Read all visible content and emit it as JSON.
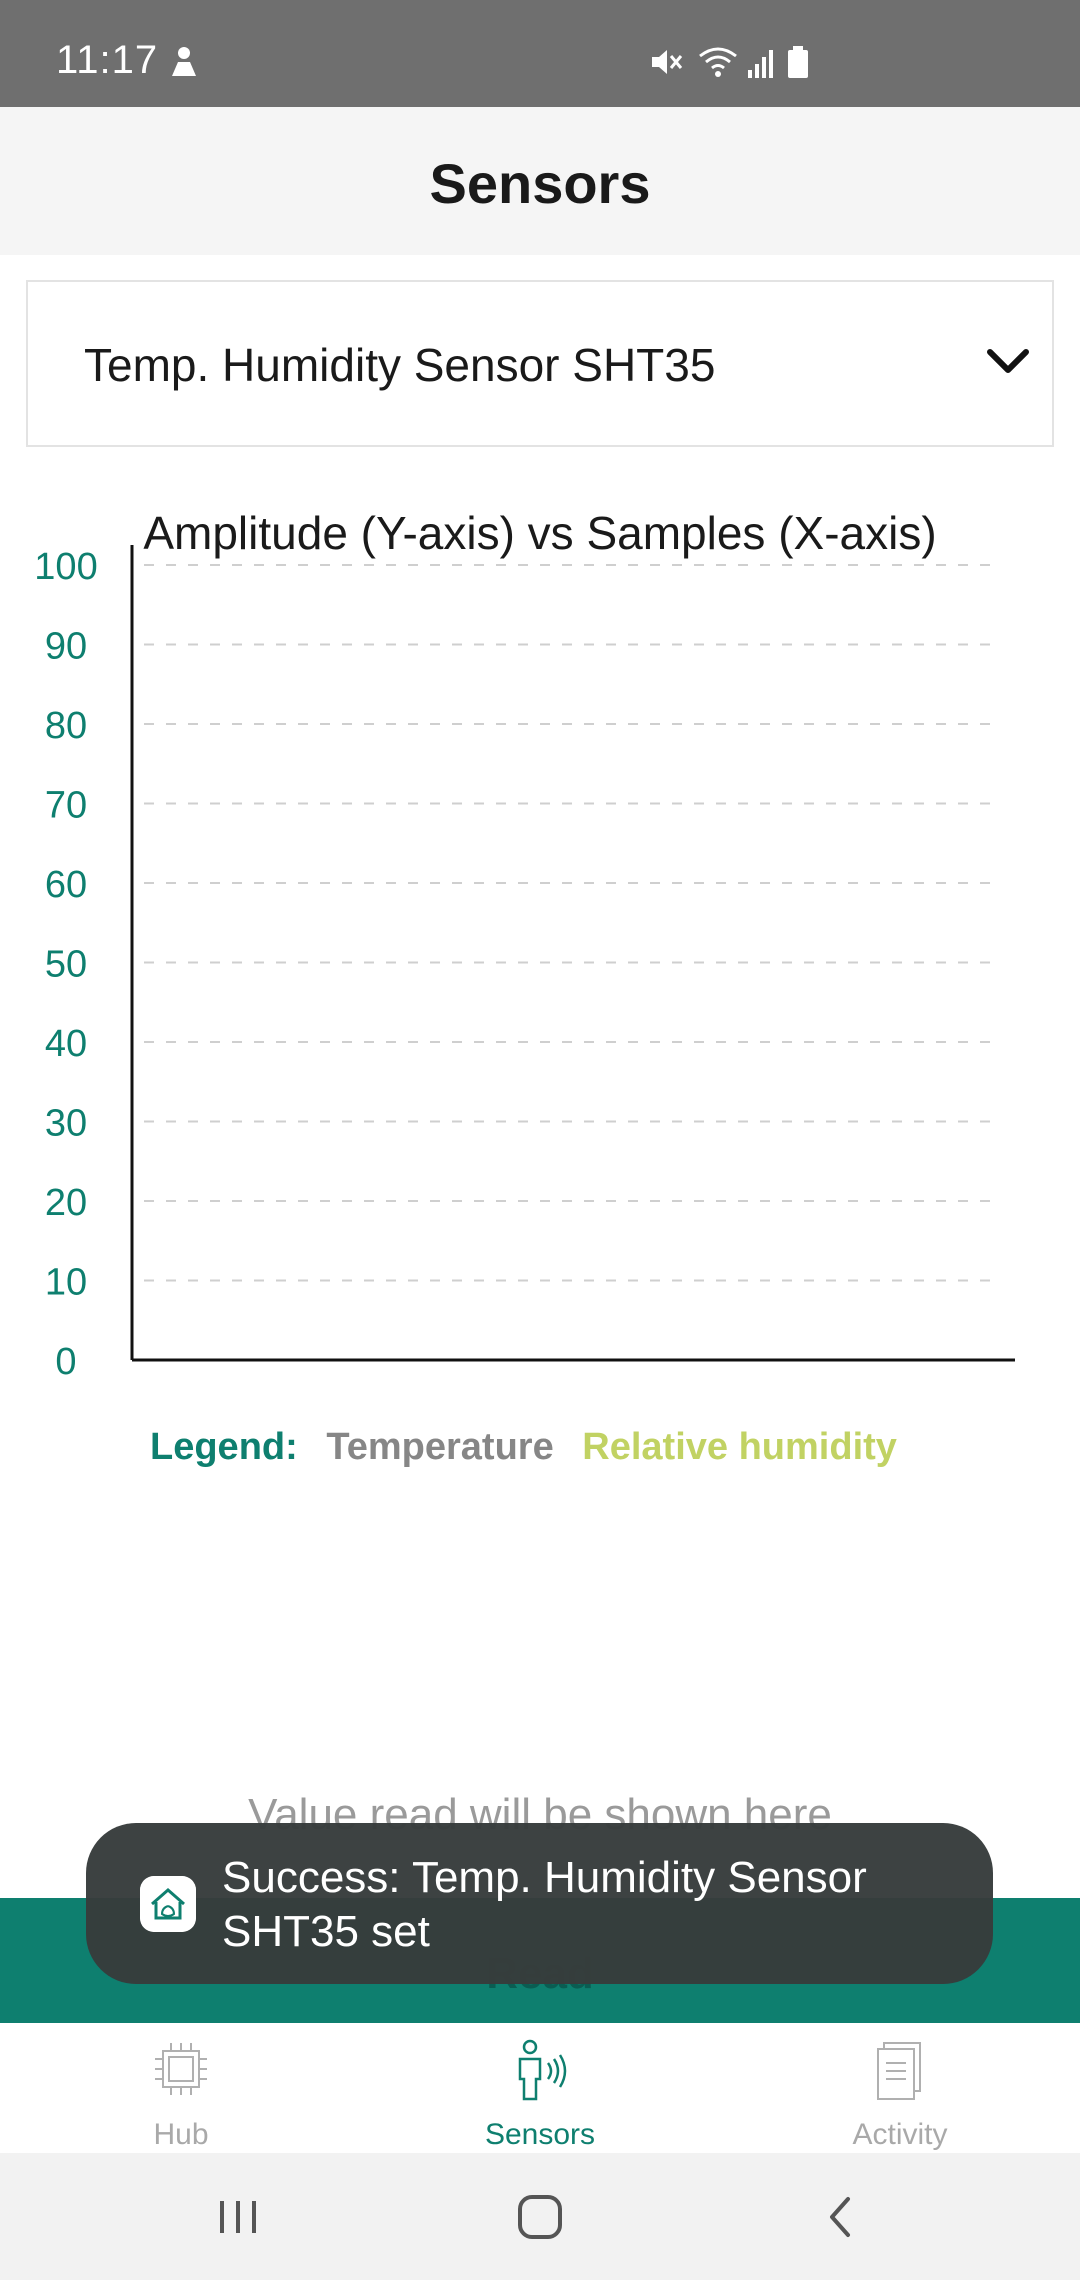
{
  "status_bar": {
    "time": "11:17"
  },
  "header": {
    "title": "Sensors"
  },
  "sensor_select": {
    "selected": "Temp. Humidity Sensor SHT35"
  },
  "chart_data": {
    "type": "line",
    "title": "Amplitude (Y-axis) vs Samples (X-axis)",
    "xlabel": "",
    "ylabel": "",
    "ylim": [
      0,
      100
    ],
    "y_ticks": [
      0,
      10,
      20,
      30,
      40,
      50,
      60,
      70,
      80,
      90,
      100
    ],
    "grid": true,
    "series": [
      {
        "name": "Temperature",
        "values": []
      },
      {
        "name": "Relative humidity",
        "values": []
      }
    ]
  },
  "legend": {
    "label": "Legend:",
    "temperature": "Temperature",
    "humidity": "Relative humidity"
  },
  "value_read": {
    "placeholder": "Value read will be shown here"
  },
  "read_button": {
    "label": "Read"
  },
  "toast": {
    "message": "Success: Temp. Humidity Sensor SHT35 set"
  },
  "bottom_nav": {
    "items": [
      {
        "label": "Hub"
      },
      {
        "label": "Sensors"
      },
      {
        "label": "Activity"
      }
    ]
  },
  "colors": {
    "accent": "#0e7f6f",
    "temperature": "#868686",
    "humidity": "#c1d263"
  }
}
